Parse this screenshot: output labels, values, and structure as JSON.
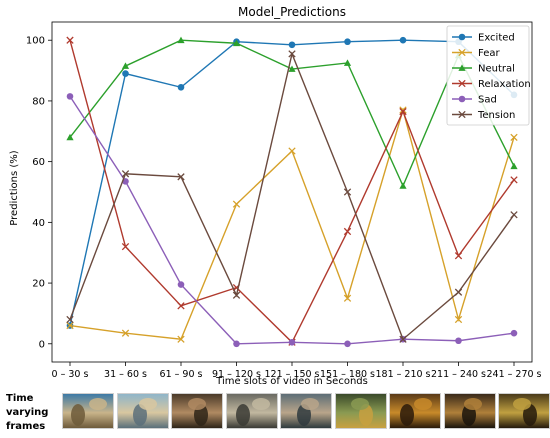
{
  "chart_data": {
    "type": "line",
    "title": "Model_Predictions",
    "xlabel": "Time slots of video in Seconds",
    "ylabel": "Predictions (%)",
    "categories": [
      "0 – 30 s",
      "31 – 60 s",
      "61 – 90 s",
      "91 – 120 s",
      "121 – 150 s",
      "151 – 180 s",
      "181 – 210 s",
      "211 – 240 s",
      "241 – 270 s"
    ],
    "ylim": [
      -6,
      106
    ],
    "yticks": [
      0,
      20,
      40,
      60,
      80,
      100
    ],
    "grid": false,
    "legend_position": "top-right",
    "series": [
      {
        "name": "Excited",
        "color": "#1f77b4",
        "marker": "circle",
        "values": [
          6,
          89,
          84.5,
          99.5,
          98.5,
          99.5,
          100,
          99.5,
          82
        ]
      },
      {
        "name": "Fear",
        "color": "#d6a12a",
        "marker": "x",
        "values": [
          6,
          3.5,
          1.5,
          46,
          63.5,
          15,
          77,
          8,
          68
        ]
      },
      {
        "name": "Neutral",
        "color": "#2ca02c",
        "marker": "triangle",
        "values": [
          68,
          91.5,
          100,
          99,
          90.5,
          92.5,
          52,
          95,
          58.5
        ]
      },
      {
        "name": "Relaxation",
        "color": "#b03a2e",
        "marker": "x",
        "values": [
          100,
          32,
          12.5,
          18.5,
          0.5,
          37,
          76.5,
          29,
          54
        ]
      },
      {
        "name": "Sad",
        "color": "#8c5fb8",
        "marker": "circle",
        "values": [
          81.5,
          53.5,
          19.5,
          0,
          0.5,
          0,
          1.5,
          1,
          3.5
        ]
      },
      {
        "name": "Tension",
        "color": "#6b4a3e",
        "marker": "x",
        "values": [
          8,
          56,
          55,
          16,
          95.5,
          50,
          1.5,
          17,
          42.5
        ]
      }
    ]
  },
  "frames": {
    "label": "Time varying frames",
    "colors": [
      [
        "#3d7aa6",
        "#c9b48a",
        "#6d5a3a"
      ],
      [
        "#8fb5c9",
        "#d8c7a0",
        "#5a6f7a"
      ],
      [
        "#4a3a2a",
        "#b08a62",
        "#2e2418"
      ],
      [
        "#6a6a62",
        "#c2b8a0",
        "#3a3a34"
      ],
      [
        "#5d6e76",
        "#b9a58a",
        "#2f3a3e"
      ],
      [
        "#3a4a2a",
        "#8a9a52",
        "#c8a040"
      ],
      [
        "#5a3a18",
        "#c88a2a",
        "#2a1a0a"
      ],
      [
        "#3a2a1a",
        "#b0803a",
        "#1a140c"
      ],
      [
        "#4a3a1a",
        "#c0a040",
        "#241a0c"
      ]
    ]
  }
}
